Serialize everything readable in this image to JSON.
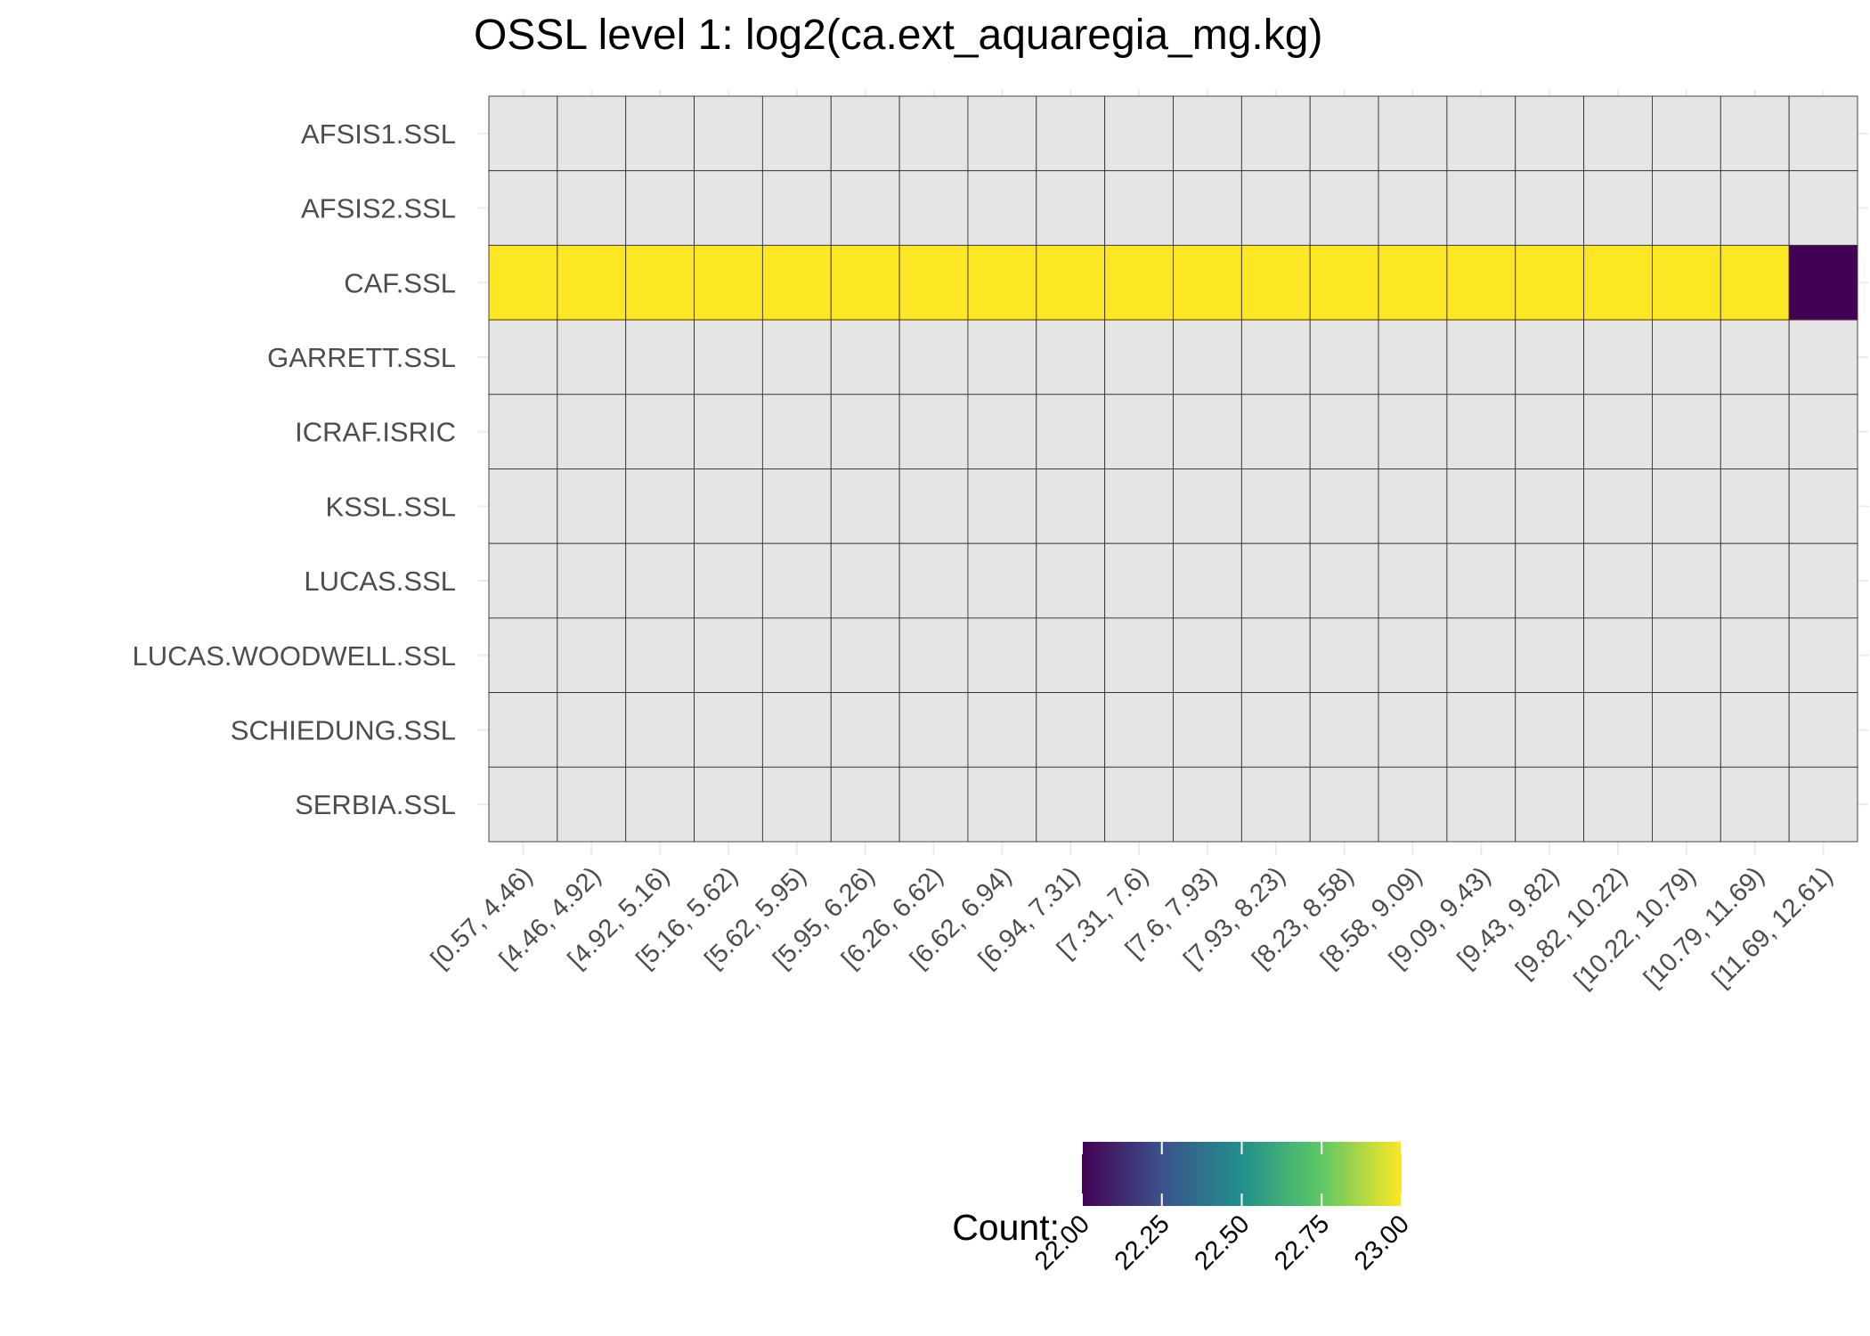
{
  "chart_data": {
    "type": "heatmap",
    "title": "OSSL level 1: log2(ca.ext_aquaregia_mg.kg)",
    "xlabel": "",
    "ylabel": "",
    "x_categories": [
      "[0.57, 4.46)",
      "[4.46, 4.92)",
      "[4.92, 5.16)",
      "[5.16, 5.62)",
      "[5.62, 5.95)",
      "[5.95, 6.26)",
      "[6.26, 6.62)",
      "[6.62, 6.94)",
      "[6.94, 7.31)",
      "[7.31, 7.6)",
      "[7.6, 7.93)",
      "[7.93, 8.23)",
      "[8.23, 8.58)",
      "[8.58, 9.09)",
      "[9.09, 9.43)",
      "[9.43, 9.82)",
      "[9.82, 10.22)",
      "[10.22, 10.79)",
      "[10.79, 11.69)",
      "[11.69, 12.61)"
    ],
    "y_categories": [
      "AFSIS1.SSL",
      "AFSIS2.SSL",
      "CAF.SSL",
      "GARRETT.SSL",
      "ICRAF.ISRIC",
      "KSSL.SSL",
      "LUCAS.SSL",
      "LUCAS.WOODWELL.SSL",
      "SCHIEDUNG.SSL",
      "SERBIA.SSL"
    ],
    "values": [
      [
        null,
        null,
        null,
        null,
        null,
        null,
        null,
        null,
        null,
        null,
        null,
        null,
        null,
        null,
        null,
        null,
        null,
        null,
        null,
        null
      ],
      [
        null,
        null,
        null,
        null,
        null,
        null,
        null,
        null,
        null,
        null,
        null,
        null,
        null,
        null,
        null,
        null,
        null,
        null,
        null,
        null
      ],
      [
        23,
        23,
        23,
        23,
        23,
        23,
        23,
        23,
        23,
        23,
        23,
        23,
        23,
        23,
        23,
        23,
        23,
        23,
        23,
        22
      ],
      [
        null,
        null,
        null,
        null,
        null,
        null,
        null,
        null,
        null,
        null,
        null,
        null,
        null,
        null,
        null,
        null,
        null,
        null,
        null,
        null
      ],
      [
        null,
        null,
        null,
        null,
        null,
        null,
        null,
        null,
        null,
        null,
        null,
        null,
        null,
        null,
        null,
        null,
        null,
        null,
        null,
        null
      ],
      [
        null,
        null,
        null,
        null,
        null,
        null,
        null,
        null,
        null,
        null,
        null,
        null,
        null,
        null,
        null,
        null,
        null,
        null,
        null,
        null
      ],
      [
        null,
        null,
        null,
        null,
        null,
        null,
        null,
        null,
        null,
        null,
        null,
        null,
        null,
        null,
        null,
        null,
        null,
        null,
        null,
        null
      ],
      [
        null,
        null,
        null,
        null,
        null,
        null,
        null,
        null,
        null,
        null,
        null,
        null,
        null,
        null,
        null,
        null,
        null,
        null,
        null,
        null
      ],
      [
        null,
        null,
        null,
        null,
        null,
        null,
        null,
        null,
        null,
        null,
        null,
        null,
        null,
        null,
        null,
        null,
        null,
        null,
        null,
        null
      ],
      [
        null,
        null,
        null,
        null,
        null,
        null,
        null,
        null,
        null,
        null,
        null,
        null,
        null,
        null,
        null,
        null,
        null,
        null,
        null,
        null
      ]
    ],
    "color_scale": {
      "name": "viridis",
      "range": [
        22,
        23
      ],
      "stops": [
        "#440154",
        "#3b528b",
        "#21908c",
        "#5dc863",
        "#fde725"
      ],
      "na_color": "#e5e5e5"
    },
    "legend": {
      "title": "Count:",
      "ticks": [
        "22.00",
        "22.25",
        "22.50",
        "22.75",
        "23.00"
      ],
      "position": "bottom"
    },
    "grid": true
  }
}
